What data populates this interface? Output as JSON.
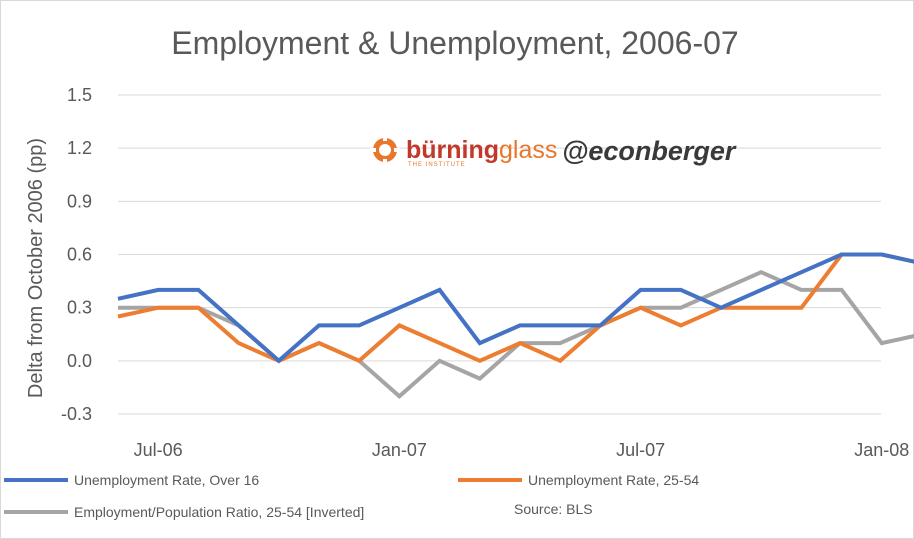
{
  "chart_data": {
    "type": "line",
    "title": "Employment & Unemployment, 2006-07",
    "ylabel": "Delta from October 2006 (pp)",
    "xlabel": "",
    "ylim": [
      -0.3,
      1.5
    ],
    "yticks": [
      "1.5",
      "1.2",
      "0.9",
      "0.6",
      "0.3",
      "0.0",
      "-0.3"
    ],
    "x_tick_labels": [
      "Jul-06",
      "Jan-07",
      "Jul-07",
      "Jan-08"
    ],
    "x": [
      "2006-06",
      "2006-07",
      "2006-08",
      "2006-09",
      "2006-10",
      "2006-11",
      "2006-12",
      "2007-01",
      "2007-02",
      "2007-03",
      "2007-04",
      "2007-05",
      "2007-06",
      "2007-07",
      "2007-08",
      "2007-09",
      "2007-10",
      "2007-11",
      "2007-12",
      "2008-01",
      "2008-02"
    ],
    "grid": true,
    "legend_position": "bottom",
    "series": [
      {
        "name": "Unemployment Rate, Over 16",
        "color": "#4472c4",
        "values": [
          0.35,
          0.4,
          0.4,
          0.2,
          0.0,
          0.2,
          0.2,
          0.3,
          0.4,
          0.1,
          0.2,
          0.2,
          0.2,
          0.4,
          0.4,
          0.3,
          0.4,
          0.5,
          0.6,
          0.6,
          0.55
        ]
      },
      {
        "name": "Unemployment Rate, 25-54",
        "color": "#ed7d31",
        "values": [
          0.25,
          0.3,
          0.3,
          0.1,
          0.0,
          0.1,
          0.0,
          0.2,
          0.1,
          0.0,
          0.1,
          0.0,
          0.2,
          0.3,
          0.2,
          0.3,
          0.3,
          0.3,
          0.6,
          0.6,
          0.55
        ]
      },
      {
        "name": "Employment/Population Ratio, 25-54 [Inverted]",
        "color": "#a5a5a5",
        "values": [
          0.3,
          0.3,
          0.3,
          0.2,
          0.0,
          0.1,
          0.0,
          -0.2,
          0.0,
          -0.1,
          0.1,
          0.1,
          0.2,
          0.3,
          0.3,
          0.4,
          0.5,
          0.4,
          0.4,
          0.1,
          0.15
        ]
      }
    ],
    "source_note": "Source: BLS"
  },
  "watermark": {
    "burning": "bürning",
    "glass": "glass",
    "institute": "THE INSTITUTE",
    "handle": "@econberger",
    "colors": {
      "burning": "#c0392b",
      "glass": "#e8762b"
    }
  }
}
